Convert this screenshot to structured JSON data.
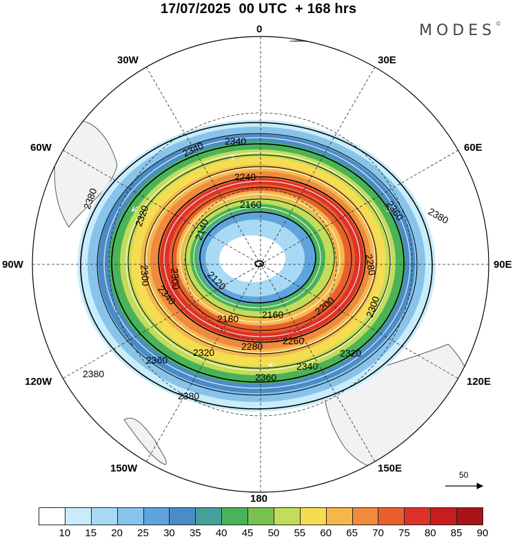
{
  "header": {
    "title": "17/07/2025  00 UTC  + 168 hrs",
    "brand": "MODES",
    "brand_mark": "©"
  },
  "map": {
    "projection": "south-polar-stereographic",
    "longitude_labels": {
      "top": "0",
      "upper_left": "30W",
      "upper_right": "30E",
      "left_upper": "60W",
      "right_upper": "60E",
      "left": "90W",
      "right": "90E",
      "lower_left": "120W",
      "lower_right": "120E",
      "bottom_left": "150W",
      "bottom_right": "150E",
      "bottom": "180"
    },
    "contour_labels": [
      "2340",
      "2340",
      "2380",
      "2380",
      "2240",
      "2320",
      "2160",
      "2140",
      "2360",
      "2300",
      "2280",
      "2120",
      "2300",
      "2340",
      "2200",
      "2380",
      "2180",
      "2160",
      "2300",
      "2260",
      "2320",
      "2280",
      "2320",
      "2360",
      "2340",
      "2360",
      "2380"
    ],
    "reference_vector_label": "50",
    "colors": {
      "land": "#f2f2f2",
      "coast": "#555555",
      "contour": "#000000",
      "streamline": "#ffffff"
    }
  },
  "colorbar": {
    "tick_labels": [
      "10",
      "15",
      "20",
      "25",
      "30",
      "35",
      "40",
      "45",
      "50",
      "55",
      "60",
      "65",
      "70",
      "75",
      "80",
      "85",
      "90"
    ],
    "colors": [
      "#ffffff",
      "#c8ecfa",
      "#a8daf5",
      "#88c3ea",
      "#5fa5dc",
      "#4a8cc6",
      "#44a09a",
      "#4ab35a",
      "#79c14f",
      "#c3dc59",
      "#f5dc52",
      "#f4b84a",
      "#ef8a3e",
      "#e9602e",
      "#dd3227",
      "#c81d1f",
      "#a81318"
    ]
  }
}
